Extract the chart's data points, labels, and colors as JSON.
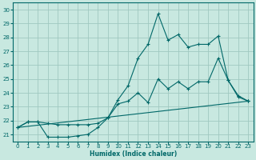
{
  "bg_color": "#c8e8e0",
  "grid_color": "#a0c8c0",
  "line_color": "#006868",
  "xlabel": "Humidex (Indice chaleur)",
  "ylim": [
    20.5,
    30.5
  ],
  "xlim": [
    -0.5,
    23.5
  ],
  "yticks": [
    21,
    22,
    23,
    24,
    25,
    26,
    27,
    28,
    29,
    30
  ],
  "xticks": [
    0,
    1,
    2,
    3,
    4,
    5,
    6,
    7,
    8,
    9,
    10,
    11,
    12,
    13,
    14,
    15,
    16,
    17,
    18,
    19,
    20,
    21,
    22,
    23
  ],
  "line1_x": [
    0,
    1,
    2,
    3,
    4,
    5,
    6,
    7,
    8,
    9,
    10,
    11,
    12,
    13,
    14,
    15,
    16,
    17,
    18,
    19,
    20,
    21,
    22,
    23
  ],
  "line1_y": [
    21.5,
    21.9,
    21.9,
    20.8,
    20.8,
    20.8,
    20.9,
    21.0,
    21.5,
    22.2,
    23.5,
    24.5,
    26.5,
    27.5,
    29.7,
    27.8,
    28.2,
    27.3,
    27.5,
    27.5,
    28.1,
    24.9,
    23.7,
    23.4
  ],
  "line2_x": [
    0,
    1,
    2,
    3,
    4,
    5,
    6,
    7,
    8,
    9,
    10,
    11,
    12,
    13,
    14,
    15,
    16,
    17,
    18,
    19,
    20,
    21,
    22,
    23
  ],
  "line2_y": [
    21.5,
    21.9,
    21.9,
    21.8,
    21.7,
    21.7,
    21.7,
    21.7,
    21.8,
    22.2,
    23.2,
    23.4,
    24.0,
    23.3,
    25.0,
    24.3,
    24.8,
    24.3,
    24.8,
    24.8,
    26.5,
    24.9,
    23.8,
    23.4
  ],
  "line3_x": [
    0,
    23
  ],
  "line3_y": [
    21.5,
    23.4
  ]
}
